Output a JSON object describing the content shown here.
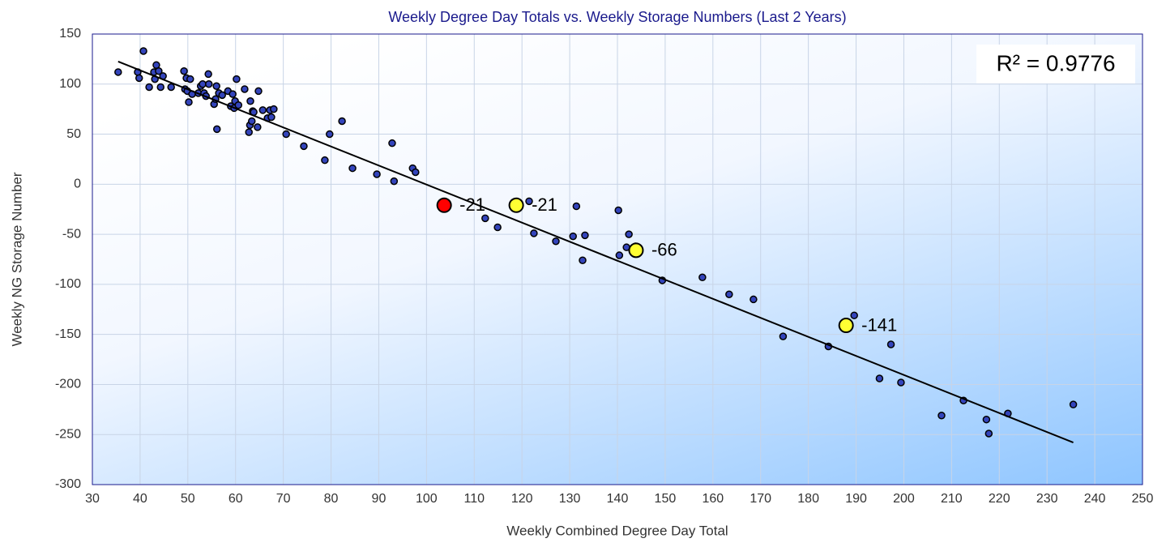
{
  "chart_data": {
    "type": "scatter",
    "title": "Weekly Degree Day Totals vs. Weekly Storage Numbers (Last 2 Years)",
    "x_label": "Weekly Combined Degree Day Total",
    "y_label": "Weekly NG Storage Number",
    "annotation": "R² = 0.9776",
    "xlim": [
      30,
      250
    ],
    "ylim": [
      -300,
      150
    ],
    "xticks": [
      30,
      40,
      50,
      60,
      70,
      80,
      90,
      100,
      110,
      120,
      130,
      140,
      150,
      160,
      170,
      180,
      190,
      200,
      210,
      220,
      230,
      240,
      250
    ],
    "yticks": [
      -300,
      -250,
      -200,
      -150,
      -100,
      -50,
      0,
      50,
      100,
      150
    ],
    "grid": true,
    "series": [
      {
        "kind": "points",
        "color": "#3344bb",
        "x": [
          35.4,
          39.5,
          39.8,
          40.7,
          41.9,
          42.9,
          43.1,
          43.4,
          43.9,
          44.3,
          44.8,
          46.5,
          49.2,
          49.4,
          49.7,
          49.9,
          50.2,
          50.5,
          50.9,
          52.2,
          52.7,
          53.1,
          53.4,
          53.8,
          54.3,
          54.4,
          55.5,
          55.8,
          56.0,
          56.1,
          56.5,
          57.2,
          58.4,
          59.0,
          59.4,
          59.7,
          59.9,
          60.2,
          60.6,
          61.9,
          62.8,
          63.0,
          63.1,
          63.4,
          63.6,
          63.8,
          64.6,
          64.8,
          65.7,
          66.7,
          67.2,
          67.5,
          68.0,
          70.6,
          74.3,
          78.7,
          79.7,
          82.3,
          84.5,
          89.6,
          92.8,
          93.2,
          97.1,
          97.7,
          112.3,
          114.9,
          121.5,
          122.5,
          127.1,
          130.7,
          131.4,
          133.2,
          132.7,
          140.2,
          140.4,
          141.9,
          142.4,
          143.8,
          149.4,
          157.8,
          163.4,
          168.5,
          174.7,
          184.2,
          189.6,
          194.9,
          197.3,
          199.4,
          207.9,
          212.5,
          217.3,
          217.8,
          221.8,
          235.5
        ],
        "values": [
          112,
          112,
          106,
          133,
          97,
          112,
          105,
          119,
          113,
          97,
          108,
          97,
          113,
          95,
          106,
          93,
          82,
          105,
          90,
          91,
          98,
          100,
          91,
          88,
          110,
          100,
          80,
          85,
          98,
          55,
          91,
          89,
          93,
          78,
          90,
          76,
          83,
          105,
          79,
          95,
          52,
          59,
          83,
          63,
          73,
          72,
          57,
          93,
          74,
          66,
          74,
          67,
          75,
          50,
          38,
          24,
          50,
          63,
          16,
          10,
          41,
          3,
          16,
          12,
          -34,
          -43,
          -17,
          -49,
          -57,
          -52,
          -22,
          -51,
          -76,
          -26,
          -71,
          -63,
          -50,
          -62,
          -96,
          -93,
          -110,
          -115,
          -152,
          -162,
          -131,
          -194,
          -160,
          -198,
          -231,
          -216,
          -235,
          -249,
          -229,
          -220
        ]
      },
      {
        "kind": "points",
        "color": "#ff0000",
        "labels": true,
        "x": [
          103.7
        ],
        "values": [
          -21
        ]
      },
      {
        "kind": "points",
        "color": "#ffff33",
        "labels": true,
        "x": [
          118.8,
          143.9,
          187.9
        ],
        "values": [
          -21,
          -66,
          -141
        ]
      },
      {
        "kind": "line",
        "color": "#000000",
        "x": [
          35.4,
          235.5
        ],
        "values": [
          122.5,
          -258
        ]
      }
    ]
  }
}
